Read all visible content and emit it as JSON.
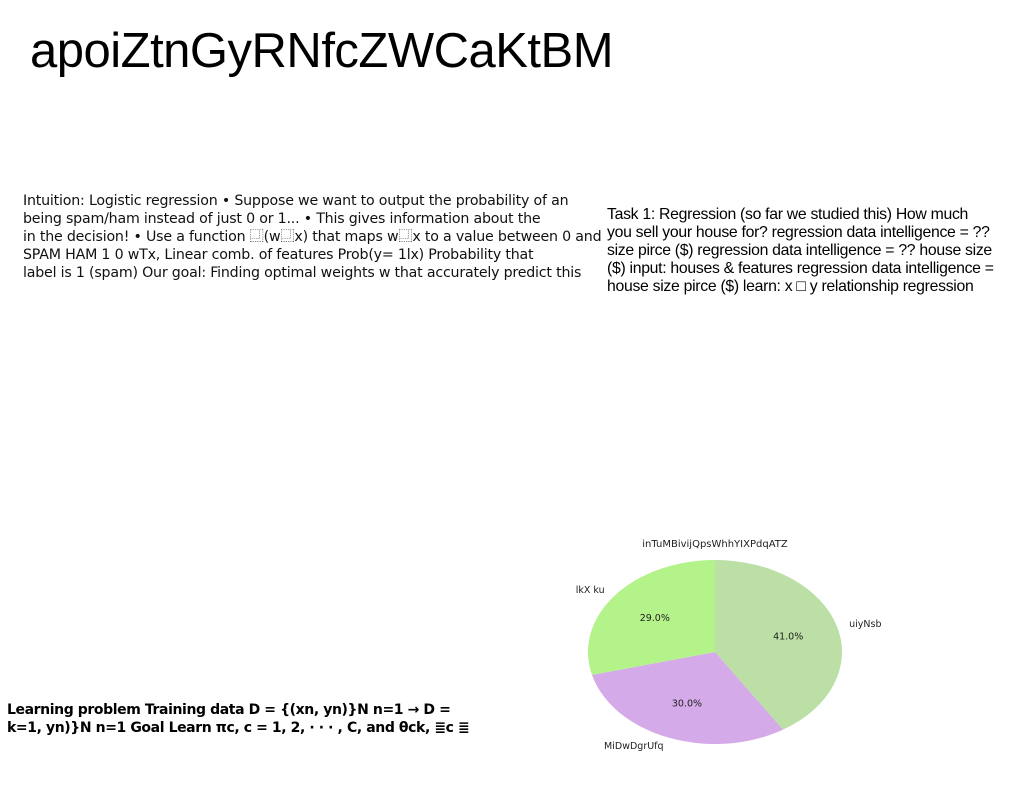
{
  "page": {
    "title": "apoiZtnGyRNfcZWCaKtBM"
  },
  "left_block": {
    "lines": [
      "Intuition: Logistic regression • Suppose we want to output the probability of an",
      "being spam/ham instead of just 0 or 1... • This gives information about the",
      "in the decision! • Use a function ⿽(w⿽x) that maps w⿽x to a value between 0 and",
      "SPAM HAM 1 0 wTx, Linear comb. of features Prob(y= 1lx) Probability that",
      "label is 1 (spam) Our goal: Finding optimal weights w that accurately predict this"
    ]
  },
  "right_block": {
    "lines": [
      "Task 1: Regression (so far we studied this) How much",
      "you sell your house for? regression data intelligence = ??",
      "size pirce ($) regression data intelligence = ?? house size",
      "($) input: houses & features regression data intelligence =",
      "house size pirce ($) learn: x □ y relationship regression"
    ]
  },
  "bottom_block": {
    "lines": [
      "Learning problem Training data D = {(xn, yn)}N n=1 → D =",
      "k=1, yn)}N n=1 Goal Learn πc, c = 1, 2, · · · , C, and θck, ≣c ≣"
    ]
  },
  "chart_data": {
    "type": "pie",
    "title": "inTuMBivijQpsWhhYIXPdqATZ",
    "slices": [
      {
        "label": "uiyNsb",
        "value": 41.0,
        "pct_label": "41.0%",
        "color": "#bcdfa5"
      },
      {
        "label": "MiDwDgrUfq",
        "value": 30.0,
        "pct_label": "30.0%",
        "color": "#d4aae8"
      },
      {
        "label": "lkX ku",
        "value": 29.0,
        "pct_label": "29.0%",
        "color": "#b3f38a"
      }
    ],
    "start_angle": "90° (top), clockwise",
    "legend": "none"
  }
}
